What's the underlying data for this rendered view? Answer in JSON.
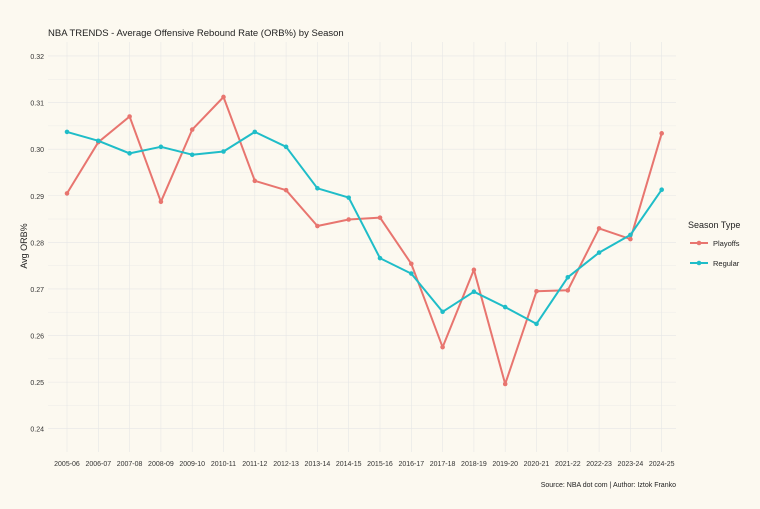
{
  "colors": {
    "background": "#fcf9f0",
    "grid": "#e6e6e6",
    "text": "#222222",
    "tick_text": "#333333"
  },
  "chart_data": {
    "type": "line",
    "title": "NBA TRENDS - Average Offensive Rebound Rate (ORB%) by Season",
    "xlabel": "",
    "ylabel": "Avg ORB%",
    "ylim": [
      0.235,
      0.323
    ],
    "yticks": [
      0.24,
      0.25,
      0.26,
      0.27,
      0.28,
      0.29,
      0.3,
      0.31,
      0.32
    ],
    "ytick_labels": [
      "0.24",
      "0.25",
      "0.26",
      "0.27",
      "0.28",
      "0.29",
      "0.30",
      "0.31",
      "0.32"
    ],
    "grid": true,
    "legend_title": "Season Type",
    "legend_position": "right",
    "caption": "Source: NBA dot com | Author: Iztok Franko",
    "categories": [
      "2005-06",
      "2006-07",
      "2007-08",
      "2008-09",
      "2009-10",
      "2010-11",
      "2011-12",
      "2012-13",
      "2013-14",
      "2014-15",
      "2015-16",
      "2016-17",
      "2017-18",
      "2018-19",
      "2019-20",
      "2020-21",
      "2021-22",
      "2022-23",
      "2023-24",
      "2024-25"
    ],
    "series": [
      {
        "name": "Playoffs",
        "color": "#e8756f",
        "values": [
          0.2905,
          0.3015,
          0.307,
          0.2887,
          0.3042,
          0.3112,
          0.2932,
          0.2912,
          0.2835,
          0.2849,
          0.2853,
          0.2754,
          0.2575,
          0.2741,
          0.2496,
          0.2695,
          0.2697,
          0.283,
          0.2807,
          0.3034
        ]
      },
      {
        "name": "Regular",
        "color": "#1fbdc8",
        "values": [
          0.3037,
          0.3018,
          0.2991,
          0.3005,
          0.2988,
          0.2995,
          0.3037,
          0.3005,
          0.2916,
          0.2896,
          0.2766,
          0.2733,
          0.2651,
          0.2694,
          0.2661,
          0.2625,
          0.2725,
          0.2778,
          0.2816,
          0.2913
        ]
      }
    ]
  }
}
